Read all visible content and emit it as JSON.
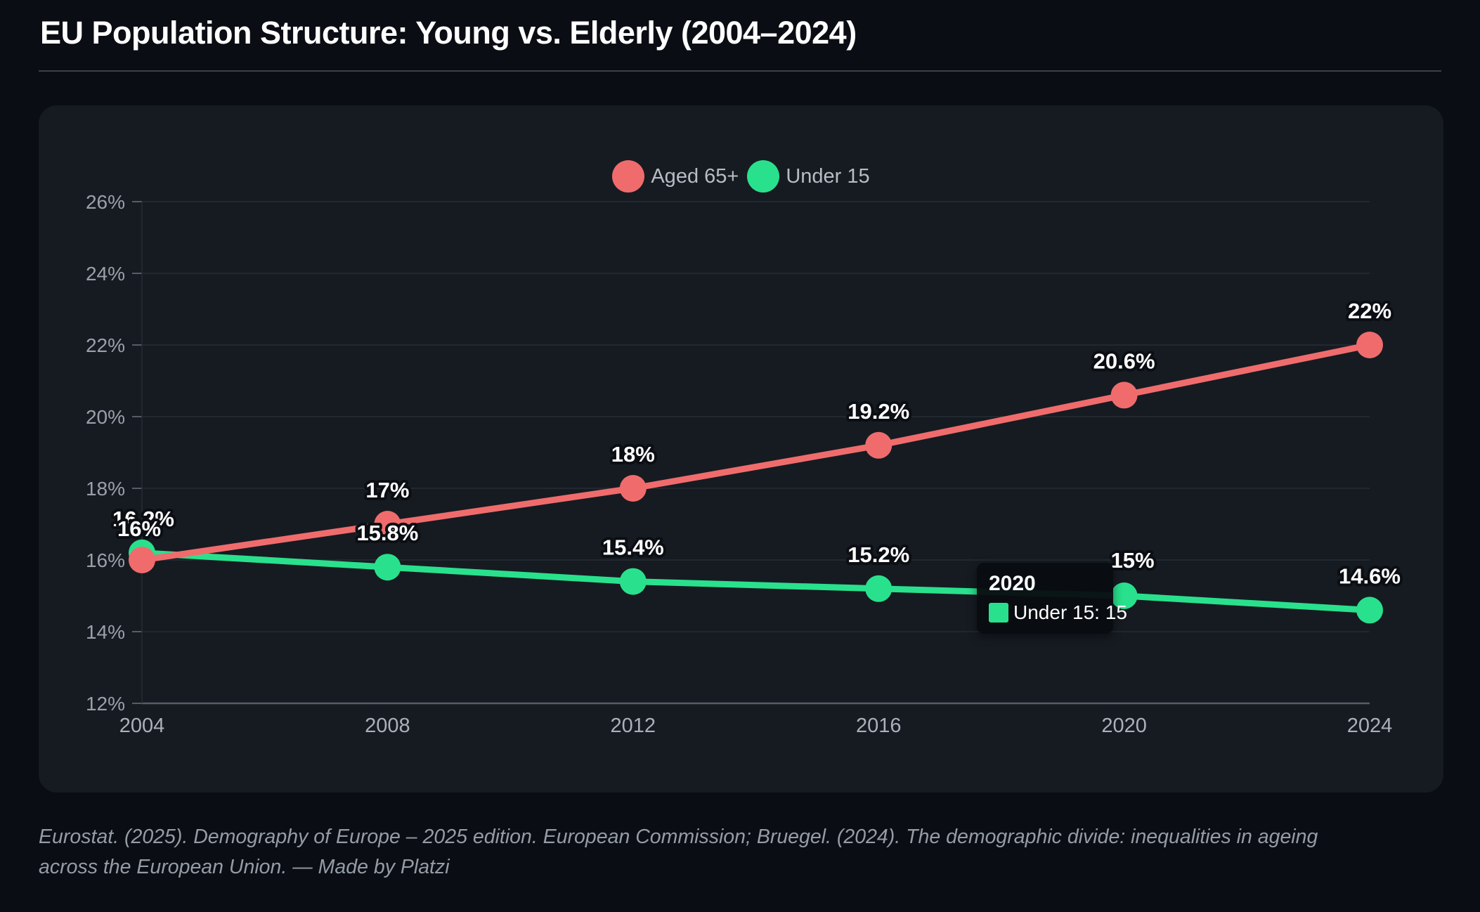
{
  "page": {
    "title": "EU Population Structure: Young vs. Elderly (2004–2024)",
    "source_note": "Eurostat. (2025). Demography of Europe – 2025 edition. European Commission; Bruegel. (2024). The demographic divide: inequalities in ageing across the European Union. — Made by Platzi"
  },
  "colors": {
    "background": "#0a0d13",
    "card": "#161b22",
    "aged_65_red": "#f06c6c",
    "under_15_green": "#29e18c",
    "grid": "#262c34",
    "axis": "#565d66",
    "y_tick_text": "#9aa1ab",
    "x_tick_text": "#aab1ba",
    "legend_text": "#b7bdc5",
    "data_label_text": "#ffffff"
  },
  "tooltip": {
    "title": "2020",
    "series": "Under 15",
    "label": "Under 15: 15"
  },
  "chart_data": {
    "type": "line",
    "x": [
      "2004",
      "2008",
      "2012",
      "2016",
      "2020",
      "2024"
    ],
    "series": [
      {
        "name": "Aged 65+",
        "color": "#f06c6c",
        "values": [
          16,
          17,
          18,
          19.2,
          20.6,
          22
        ],
        "point_labels": [
          "16%",
          "17%",
          "18%",
          "19.2%",
          "20.6%",
          "22%"
        ]
      },
      {
        "name": "Under 15",
        "color": "#29e18c",
        "values": [
          16.2,
          15.8,
          15.4,
          15.2,
          15,
          14.6
        ],
        "point_labels": [
          "16.2%",
          "15.8%",
          "15.4%",
          "15.2%",
          "15%",
          "14.6%"
        ]
      }
    ],
    "ylim": [
      12,
      26
    ],
    "yticks": [
      12,
      14,
      16,
      18,
      20,
      22,
      24,
      26
    ],
    "ytick_labels": [
      "12%",
      "14%",
      "16%",
      "18%",
      "20%",
      "22%",
      "24%",
      "26%"
    ],
    "grid": true,
    "legend_position": "top-center"
  }
}
